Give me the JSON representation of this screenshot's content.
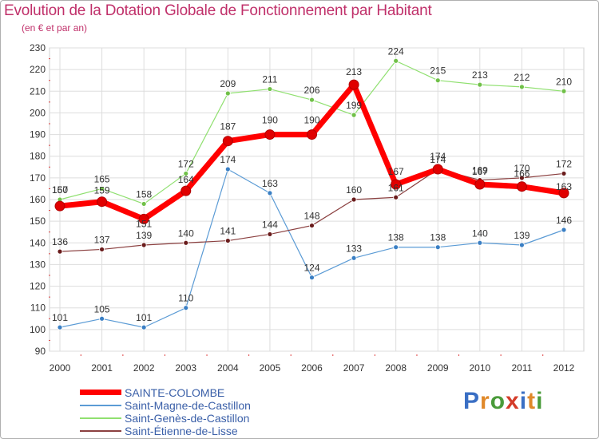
{
  "header": {
    "title": "Evolution de la Dotation Globale de Fonctionnement par Habitant",
    "subtitle": "(en € et par an)"
  },
  "brand": {
    "text": "Proxiti",
    "letters": [
      "P",
      "r",
      "o",
      "x",
      "i",
      "t",
      "i"
    ],
    "letter_colors": [
      "#3a6fc4",
      "#e0892a",
      "#4a9b3a",
      "#d43c2a",
      "#3a6fc4",
      "#e0892a",
      "#4a9b3a"
    ]
  },
  "chart_data": {
    "type": "line",
    "title": "Evolution de la Dotation Globale de Fonctionnement par Habitant",
    "subtitle": "(en € et par an)",
    "xlabel": "",
    "ylabel": "",
    "x": [
      "2000",
      "2001",
      "2002",
      "2003",
      "2004",
      "2005",
      "2006",
      "2007",
      "2008",
      "2009",
      "2010",
      "2011",
      "2012"
    ],
    "ylim": [
      90,
      230
    ],
    "yticks": [
      90,
      100,
      110,
      120,
      130,
      140,
      150,
      160,
      170,
      180,
      190,
      200,
      210,
      220,
      230
    ],
    "grid": true,
    "legend_position": "bottom-left",
    "series": [
      {
        "name": "Saint-Magne-de-Castillon",
        "color": "#5b9bd5",
        "point_color": "#3a7fc4",
        "width": 1.2,
        "values": [
          101,
          105,
          101,
          110,
          174,
          163,
          124,
          133,
          138,
          138,
          140,
          139,
          146
        ]
      },
      {
        "name": "Saint-Genès-de-Castillon",
        "color": "#90e070",
        "point_color": "#70c048",
        "width": 1.2,
        "values": [
          160,
          165,
          158,
          172,
          209,
          211,
          206,
          199,
          224,
          215,
          213,
          212,
          210
        ]
      },
      {
        "name": "Saint-Étienne-de-Lisse",
        "color": "#8b4040",
        "point_color": "#6a1c1c",
        "width": 1.2,
        "values": [
          136,
          137,
          139,
          140,
          141,
          144,
          148,
          160,
          161,
          174,
          169,
          170,
          172
        ]
      },
      {
        "name": "SAINTE-COLOMBE",
        "color": "#ff0000",
        "point_color": "#e00000",
        "width": 7,
        "values": [
          157,
          159,
          151,
          164,
          187,
          190,
          190,
          213,
          167,
          174,
          167,
          166,
          163
        ]
      }
    ],
    "legend": [
      "SAINTE-COLOMBE",
      "Saint-Magne-de-Castillon",
      "Saint-Genès-de-Castillon",
      "Saint-Étienne-de-Lisse"
    ]
  }
}
